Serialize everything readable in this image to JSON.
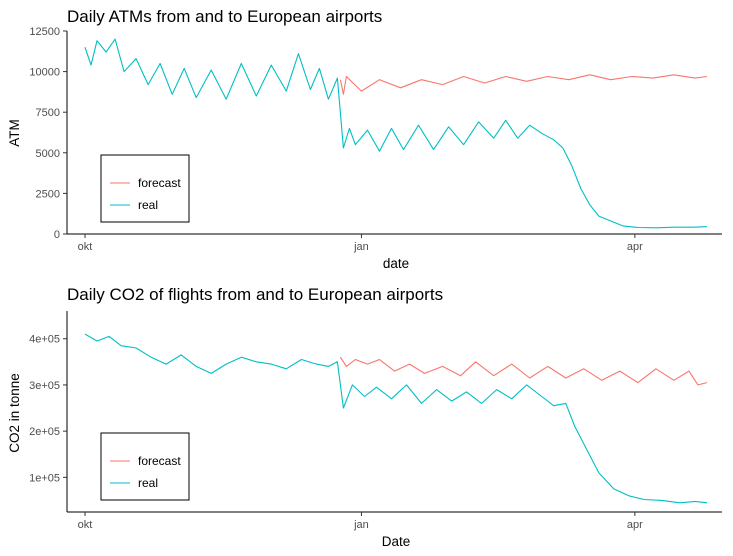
{
  "colors": {
    "forecast": "#F8766D",
    "real": "#00BFC4",
    "axis": "#000000",
    "tick_text": "#4d4d4d"
  },
  "chart_data": [
    {
      "type": "line",
      "title": "Daily ATMs from and to European airports",
      "xlabel": "date",
      "ylabel": "ATM",
      "x_start": "2019-09-25",
      "x_end": "2020-04-30",
      "ylim": [
        0,
        12500
      ],
      "yticks": [
        0,
        2500,
        5000,
        7500,
        10000,
        12500
      ],
      "ytick_labels": [
        "0",
        "2500",
        "5000",
        "7500",
        "10000",
        "12500"
      ],
      "xticks": [
        "2019-10-01",
        "2020-01-01",
        "2020-04-01"
      ],
      "xtick_labels": [
        "okt",
        "jan",
        "apr"
      ],
      "legend": {
        "position": "bottom-left",
        "entries": [
          "forecast",
          "real"
        ]
      },
      "grid": false,
      "series": [
        {
          "name": "forecast",
          "color": "#F8766D",
          "points": [
            [
              "2019-12-25",
              9500
            ],
            [
              "2019-12-26",
              8600
            ],
            [
              "2019-12-27",
              9700
            ],
            [
              "2020-01-01",
              8800
            ],
            [
              "2020-01-07",
              9500
            ],
            [
              "2020-01-14",
              9000
            ],
            [
              "2020-01-21",
              9500
            ],
            [
              "2020-01-28",
              9200
            ],
            [
              "2020-02-04",
              9700
            ],
            [
              "2020-02-11",
              9300
            ],
            [
              "2020-02-18",
              9700
            ],
            [
              "2020-02-25",
              9400
            ],
            [
              "2020-03-03",
              9700
            ],
            [
              "2020-03-10",
              9500
            ],
            [
              "2020-03-17",
              9800
            ],
            [
              "2020-03-24",
              9500
            ],
            [
              "2020-03-31",
              9700
            ],
            [
              "2020-04-07",
              9600
            ],
            [
              "2020-04-14",
              9800
            ],
            [
              "2020-04-21",
              9600
            ],
            [
              "2020-04-25",
              9700
            ]
          ]
        },
        {
          "name": "real",
          "color": "#00BFC4",
          "points": [
            [
              "2019-10-01",
              11500
            ],
            [
              "2019-10-03",
              10400
            ],
            [
              "2019-10-05",
              11900
            ],
            [
              "2019-10-08",
              11200
            ],
            [
              "2019-10-11",
              12000
            ],
            [
              "2019-10-14",
              10000
            ],
            [
              "2019-10-18",
              10800
            ],
            [
              "2019-10-22",
              9200
            ],
            [
              "2019-10-26",
              10500
            ],
            [
              "2019-10-30",
              8600
            ],
            [
              "2019-11-03",
              10200
            ],
            [
              "2019-11-07",
              8400
            ],
            [
              "2019-11-12",
              10100
            ],
            [
              "2019-11-17",
              8300
            ],
            [
              "2019-11-22",
              10500
            ],
            [
              "2019-11-27",
              8500
            ],
            [
              "2019-12-02",
              10400
            ],
            [
              "2019-12-07",
              8800
            ],
            [
              "2019-12-11",
              11100
            ],
            [
              "2019-12-15",
              8900
            ],
            [
              "2019-12-18",
              10200
            ],
            [
              "2019-12-21",
              8300
            ],
            [
              "2019-12-24",
              9600
            ],
            [
              "2019-12-26",
              5300
            ],
            [
              "2019-12-28",
              6500
            ],
            [
              "2019-12-30",
              5500
            ],
            [
              "2020-01-03",
              6400
            ],
            [
              "2020-01-07",
              5100
            ],
            [
              "2020-01-11",
              6500
            ],
            [
              "2020-01-15",
              5200
            ],
            [
              "2020-01-20",
              6700
            ],
            [
              "2020-01-25",
              5200
            ],
            [
              "2020-01-30",
              6600
            ],
            [
              "2020-02-04",
              5500
            ],
            [
              "2020-02-09",
              6900
            ],
            [
              "2020-02-14",
              5900
            ],
            [
              "2020-02-18",
              7000
            ],
            [
              "2020-02-22",
              5900
            ],
            [
              "2020-02-26",
              6700
            ],
            [
              "2020-03-01",
              6200
            ],
            [
              "2020-03-05",
              5800
            ],
            [
              "2020-03-08",
              5300
            ],
            [
              "2020-03-11",
              4200
            ],
            [
              "2020-03-14",
              2800
            ],
            [
              "2020-03-17",
              1800
            ],
            [
              "2020-03-20",
              1100
            ],
            [
              "2020-03-24",
              800
            ],
            [
              "2020-03-28",
              500
            ],
            [
              "2020-04-02",
              400
            ],
            [
              "2020-04-08",
              380
            ],
            [
              "2020-04-14",
              420
            ],
            [
              "2020-04-20",
              420
            ],
            [
              "2020-04-25",
              450
            ]
          ]
        }
      ]
    },
    {
      "type": "line",
      "title": "Daily CO2 of flights from and to European airports",
      "xlabel": "Date",
      "ylabel": "CO2 in tonne",
      "x_start": "2019-09-25",
      "x_end": "2020-04-30",
      "ylim": [
        25000,
        460000
      ],
      "yticks": [
        100000,
        200000,
        300000,
        400000
      ],
      "ytick_labels": [
        "1e+05",
        "2e+05",
        "3e+05",
        "4e+05"
      ],
      "xticks": [
        "2019-10-01",
        "2020-01-01",
        "2020-04-01"
      ],
      "xtick_labels": [
        "okt",
        "jan",
        "apr"
      ],
      "legend": {
        "position": "bottom-left",
        "entries": [
          "forecast",
          "real"
        ]
      },
      "grid": false,
      "series": [
        {
          "name": "forecast",
          "color": "#F8766D",
          "points": [
            [
              "2019-12-25",
              360000
            ],
            [
              "2019-12-27",
              340000
            ],
            [
              "2019-12-30",
              355000
            ],
            [
              "2020-01-03",
              345000
            ],
            [
              "2020-01-07",
              355000
            ],
            [
              "2020-01-12",
              330000
            ],
            [
              "2020-01-17",
              345000
            ],
            [
              "2020-01-22",
              325000
            ],
            [
              "2020-01-28",
              340000
            ],
            [
              "2020-02-03",
              320000
            ],
            [
              "2020-02-08",
              350000
            ],
            [
              "2020-02-14",
              320000
            ],
            [
              "2020-02-20",
              345000
            ],
            [
              "2020-02-26",
              315000
            ],
            [
              "2020-03-03",
              340000
            ],
            [
              "2020-03-09",
              315000
            ],
            [
              "2020-03-15",
              335000
            ],
            [
              "2020-03-21",
              310000
            ],
            [
              "2020-03-27",
              330000
            ],
            [
              "2020-04-02",
              305000
            ],
            [
              "2020-04-08",
              335000
            ],
            [
              "2020-04-14",
              310000
            ],
            [
              "2020-04-19",
              330000
            ],
            [
              "2020-04-22",
              300000
            ],
            [
              "2020-04-25",
              305000
            ]
          ]
        },
        {
          "name": "real",
          "color": "#00BFC4",
          "points": [
            [
              "2019-10-01",
              410000
            ],
            [
              "2019-10-05",
              395000
            ],
            [
              "2019-10-09",
              405000
            ],
            [
              "2019-10-13",
              385000
            ],
            [
              "2019-10-18",
              380000
            ],
            [
              "2019-10-23",
              360000
            ],
            [
              "2019-10-28",
              345000
            ],
            [
              "2019-11-02",
              365000
            ],
            [
              "2019-11-07",
              340000
            ],
            [
              "2019-11-12",
              325000
            ],
            [
              "2019-11-17",
              345000
            ],
            [
              "2019-11-22",
              360000
            ],
            [
              "2019-11-27",
              350000
            ],
            [
              "2019-12-02",
              345000
            ],
            [
              "2019-12-07",
              335000
            ],
            [
              "2019-12-12",
              355000
            ],
            [
              "2019-12-17",
              345000
            ],
            [
              "2019-12-21",
              340000
            ],
            [
              "2019-12-24",
              350000
            ],
            [
              "2019-12-26",
              250000
            ],
            [
              "2019-12-29",
              300000
            ],
            [
              "2020-01-02",
              275000
            ],
            [
              "2020-01-06",
              295000
            ],
            [
              "2020-01-11",
              270000
            ],
            [
              "2020-01-16",
              300000
            ],
            [
              "2020-01-21",
              260000
            ],
            [
              "2020-01-26",
              290000
            ],
            [
              "2020-01-31",
              265000
            ],
            [
              "2020-02-05",
              285000
            ],
            [
              "2020-02-10",
              260000
            ],
            [
              "2020-02-15",
              290000
            ],
            [
              "2020-02-20",
              270000
            ],
            [
              "2020-02-25",
              300000
            ],
            [
              "2020-03-01",
              275000
            ],
            [
              "2020-03-05",
              255000
            ],
            [
              "2020-03-09",
              260000
            ],
            [
              "2020-03-12",
              210000
            ],
            [
              "2020-03-16",
              160000
            ],
            [
              "2020-03-20",
              110000
            ],
            [
              "2020-03-25",
              75000
            ],
            [
              "2020-03-30",
              60000
            ],
            [
              "2020-04-04",
              52000
            ],
            [
              "2020-04-10",
              50000
            ],
            [
              "2020-04-16",
              45000
            ],
            [
              "2020-04-21",
              48000
            ],
            [
              "2020-04-25",
              45000
            ]
          ]
        }
      ]
    }
  ]
}
